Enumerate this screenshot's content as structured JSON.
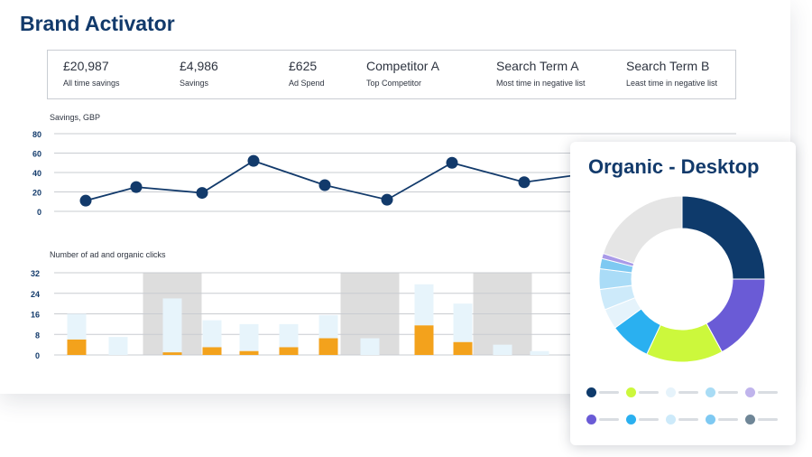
{
  "app": {
    "title": "Brand Activator"
  },
  "stats": [
    {
      "value": "£20,987",
      "label": "All time savings"
    },
    {
      "value": "£4,986",
      "label": "Savings"
    },
    {
      "value": "£625",
      "label": "Ad Spend"
    },
    {
      "value": "Competitor A",
      "label": "Top Competitor"
    },
    {
      "value": "Search Term A",
      "label": "Most time in negative list"
    },
    {
      "value": "Search Term B",
      "label": "Least time in negative list"
    }
  ],
  "chart_data": [
    {
      "type": "line",
      "title": "Savings, GBP",
      "xlabel": "",
      "ylabel": "",
      "ylim": [
        0,
        80
      ],
      "yticks": [
        0,
        20,
        40,
        60,
        80
      ],
      "grid": true,
      "series": [
        {
          "name": "Savings",
          "values": [
            11,
            25,
            19,
            52,
            27,
            12,
            50,
            30,
            40
          ],
          "color": "#123a6b"
        }
      ]
    },
    {
      "type": "bar",
      "title": "Number of ad and organic clicks",
      "xlabel": "",
      "ylabel": "",
      "ylim": [
        0,
        32
      ],
      "yticks": [
        0,
        8,
        16,
        24,
        32
      ],
      "grid": true,
      "highlighted_indices": [
        2,
        7,
        10
      ],
      "series": [
        {
          "name": "Ad clicks",
          "values": [
            6,
            0,
            1,
            3,
            1.5,
            3,
            6.5,
            0,
            11.5,
            5,
            0,
            0
          ],
          "color": "#f3a21c"
        },
        {
          "name": "Organic clicks",
          "values": [
            10,
            7,
            21,
            10.5,
            10.5,
            9,
            9,
            6.5,
            16,
            15,
            4,
            1.5
          ],
          "color": "#e7f4fb"
        }
      ]
    },
    {
      "type": "pie",
      "title": "Organic - Desktop",
      "series": [
        {
          "name": "Organic - Desktop",
          "values": [
            25,
            17,
            15,
            8,
            4,
            4,
            4,
            2,
            1,
            20
          ],
          "colors": [
            "#0e3a6b",
            "#6a5bd6",
            "#ccf83c",
            "#2ab0f0",
            "#e5f3fb",
            "#cdeafa",
            "#aadcf7",
            "#7ec9f2",
            "#a99ae8",
            "#e5e5e5"
          ]
        }
      ]
    }
  ],
  "legend": {
    "colors": [
      "#0e3a6b",
      "#ccf83c",
      "#e6f3fb",
      "#a9dcf5",
      "#c0b4ec",
      "#6a5bd6",
      "#2ab0f0",
      "#cdeafa",
      "#7ec9f2",
      "#6f8697"
    ]
  }
}
